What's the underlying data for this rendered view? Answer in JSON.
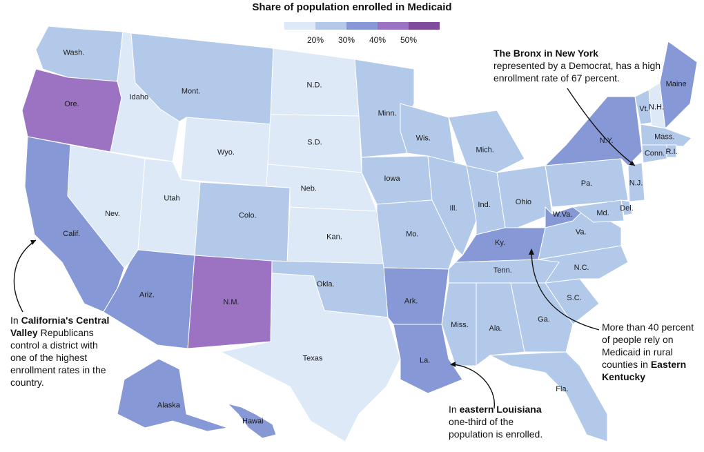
{
  "title": "Share of population enrolled in Medicaid",
  "legend": {
    "colors": [
      "#dde9f6",
      "#b3c9ea",
      "#8698d6",
      "#9c72c2",
      "#7e4b9d"
    ],
    "ticks": [
      "20%",
      "30%",
      "40%",
      "50%"
    ]
  },
  "colors": {
    "c1": "#dde9f6",
    "c2": "#b3c9ea",
    "c3": "#8698d6",
    "c4": "#9c72c2",
    "c5": "#7e4b9d",
    "border": "#ffffff",
    "arrow": "#111111"
  },
  "states": [
    {
      "abbr": "Wash.",
      "fill": "c2"
    },
    {
      "abbr": "Ore.",
      "fill": "c4"
    },
    {
      "abbr": "Calif.",
      "fill": "c3"
    },
    {
      "abbr": "Idaho",
      "fill": "c1"
    },
    {
      "abbr": "Nev.",
      "fill": "c1"
    },
    {
      "abbr": "Mont.",
      "fill": "c2"
    },
    {
      "abbr": "Wyo.",
      "fill": "c1"
    },
    {
      "abbr": "Utah",
      "fill": "c1"
    },
    {
      "abbr": "Colo.",
      "fill": "c2"
    },
    {
      "abbr": "Ariz.",
      "fill": "c3"
    },
    {
      "abbr": "N.M.",
      "fill": "c4"
    },
    {
      "abbr": "N.D.",
      "fill": "c1"
    },
    {
      "abbr": "S.D.",
      "fill": "c1"
    },
    {
      "abbr": "Neb.",
      "fill": "c1"
    },
    {
      "abbr": "Kan.",
      "fill": "c1"
    },
    {
      "abbr": "Okla.",
      "fill": "c2"
    },
    {
      "abbr": "Texas",
      "fill": "c1"
    },
    {
      "abbr": "Minn.",
      "fill": "c2"
    },
    {
      "abbr": "Iowa",
      "fill": "c2"
    },
    {
      "abbr": "Mo.",
      "fill": "c2"
    },
    {
      "abbr": "Ark.",
      "fill": "c3"
    },
    {
      "abbr": "La.",
      "fill": "c3"
    },
    {
      "abbr": "Wis.",
      "fill": "c2"
    },
    {
      "abbr": "Ill.",
      "fill": "c2"
    },
    {
      "abbr": "Mich.",
      "fill": "c2"
    },
    {
      "abbr": "Ind.",
      "fill": "c2"
    },
    {
      "abbr": "Ohio",
      "fill": "c2"
    },
    {
      "abbr": "Ky.",
      "fill": "c3"
    },
    {
      "abbr": "Tenn.",
      "fill": "c2"
    },
    {
      "abbr": "Miss.",
      "fill": "c2"
    },
    {
      "abbr": "Ala.",
      "fill": "c2"
    },
    {
      "abbr": "Ga.",
      "fill": "c2"
    },
    {
      "abbr": "Fla.",
      "fill": "c2"
    },
    {
      "abbr": "S.C.",
      "fill": "c2"
    },
    {
      "abbr": "N.C.",
      "fill": "c2"
    },
    {
      "abbr": "Va.",
      "fill": "c2"
    },
    {
      "abbr": "W.Va.",
      "fill": "c3"
    },
    {
      "abbr": "Pa.",
      "fill": "c2"
    },
    {
      "abbr": "N.Y.",
      "fill": "c3"
    },
    {
      "abbr": "Vt.",
      "fill": "c2"
    },
    {
      "abbr": "N.H.",
      "fill": "c1"
    },
    {
      "abbr": "Maine",
      "fill": "c3"
    },
    {
      "abbr": "Mass.",
      "fill": "c2"
    },
    {
      "abbr": "R.I.",
      "fill": "c2"
    },
    {
      "abbr": "Conn.",
      "fill": "c2"
    },
    {
      "abbr": "N.J.",
      "fill": "c2"
    },
    {
      "abbr": "Del.",
      "fill": "c2"
    },
    {
      "abbr": "Md.",
      "fill": "c2"
    },
    {
      "abbr": "Alaska",
      "fill": "c3"
    },
    {
      "abbr": "Hawai",
      "fill": "c3"
    }
  ],
  "annotations": {
    "bronx": {
      "bold": "The Bronx in New York",
      "text": "represented by a Democrat, has a high enrollment rate of 67 percent."
    },
    "california": {
      "pre": "In ",
      "bold": "California's Central Valley",
      "text": "Republicans control a district with one of the highest enrollment rates in the country."
    },
    "kentucky": {
      "text": "More than 40 percent of people rely on Medicaid in rural counties in",
      "bold": "Eastern Kentucky"
    },
    "louisiana": {
      "pre": "In ",
      "bold": "eastern Louisiana",
      "text": "one-third of the population is enrolled."
    }
  }
}
